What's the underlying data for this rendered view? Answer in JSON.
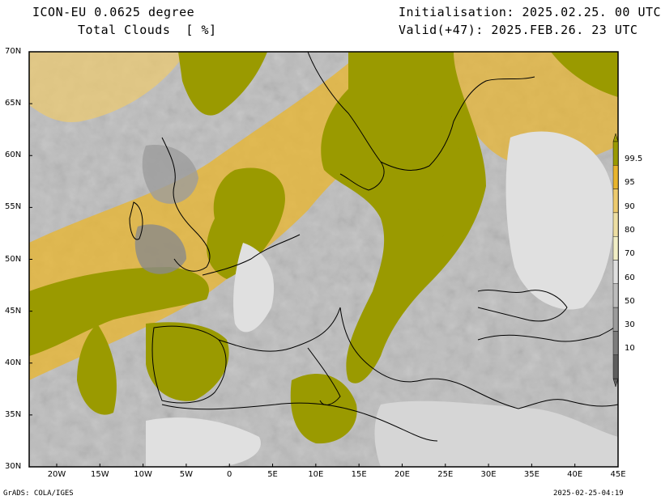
{
  "header": {
    "model": "ICON-EU 0.0625 degree",
    "variable": "Total Clouds  [ %]",
    "init": "Initialisation: 2025.02.25. 00 UTC",
    "valid": "Valid(+47): 2025.FEB.26. 23 UTC"
  },
  "axes": {
    "lat_labels": [
      "70N",
      "65N",
      "60N",
      "55N",
      "50N",
      "45N",
      "40N",
      "35N",
      "30N"
    ],
    "lon_labels": [
      "20W",
      "15W",
      "10W",
      "5W",
      "0",
      "5E",
      "10E",
      "15E",
      "20E",
      "25E",
      "30E",
      "35E",
      "40E",
      "45E"
    ]
  },
  "colorbar": {
    "labels": [
      "99.5",
      "95",
      "90",
      "80",
      "70",
      "60",
      "50",
      "30",
      "10"
    ],
    "colors": [
      "#9a9a00",
      "#e9b52c",
      "#eecb6e",
      "#eedfa3",
      "#f2efc6",
      "#e0e0e0",
      "#bdbdbd",
      "#9c9c9c",
      "#7d7d7d",
      "#5e5e5e"
    ]
  },
  "footer": {
    "left": "GrADS: COLA/IGES",
    "right": "2025-02-25-04:19"
  }
}
